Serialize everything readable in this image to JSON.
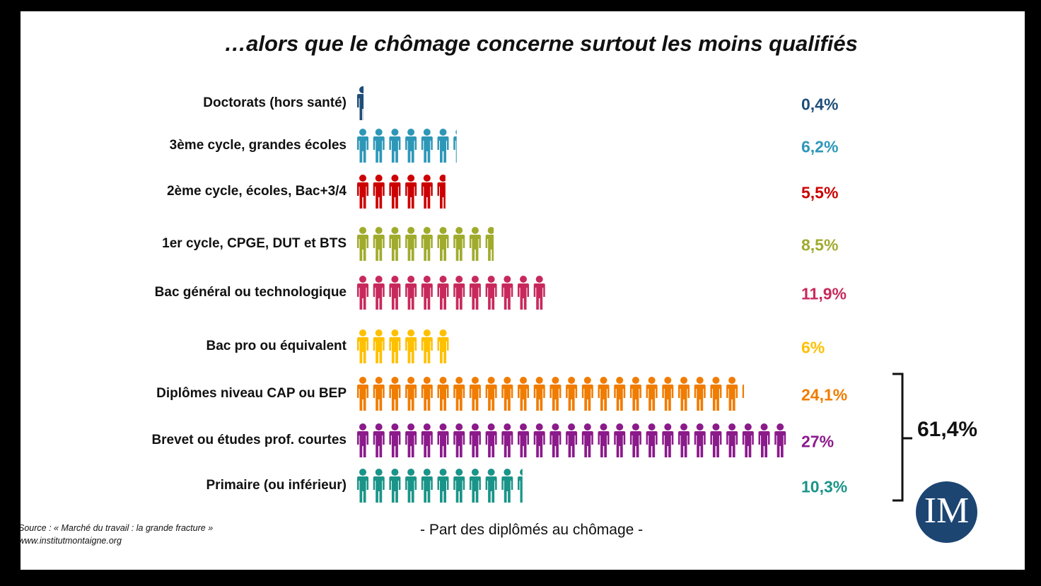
{
  "title": "…alors que le chômage concerne surtout les moins qualifiés",
  "caption": "- Part des diplômés au chômage -",
  "source_line1": "Source : « Marché du travail : la grande fracture »",
  "source_line2": "www.institutmontaigne.org",
  "total_label": "61,4%",
  "logo_text": "IM",
  "chart_data": {
    "type": "bar",
    "categories": [
      "Doctorats (hors santé)",
      "3ème cycle, grandes écoles",
      "2ème cycle, écoles, Bac+3/4",
      "1er cycle, CPGE, DUT et BTS",
      "Bac général ou technologique",
      "Bac pro ou équivalent",
      "Diplômes niveau CAP ou BEP",
      "Brevet ou études prof. courtes",
      "Primaire (ou inférieur)"
    ],
    "values": [
      0.4,
      6.2,
      5.5,
      8.5,
      11.9,
      6,
      24.1,
      27,
      10.3
    ],
    "value_labels": [
      "0,4%",
      "6,2%",
      "5,5%",
      "8,5%",
      "11,9%",
      "6%",
      "24,1%",
      "27%",
      "10,3%"
    ],
    "colors": [
      "#1f4e79",
      "#2e97b8",
      "#cc0000",
      "#a0ab2d",
      "#c8295c",
      "#ffc000",
      "#f07c00",
      "#8b1a8b",
      "#1a9488"
    ],
    "grouped_total": "61,4%",
    "grouped_categories": [
      "Diplômes niveau CAP ou BEP",
      "Brevet ou études prof. courtes",
      "Primaire (ou inférieur)"
    ],
    "xlabel": "- Part des diplômés au chômage -",
    "unit": "%"
  }
}
